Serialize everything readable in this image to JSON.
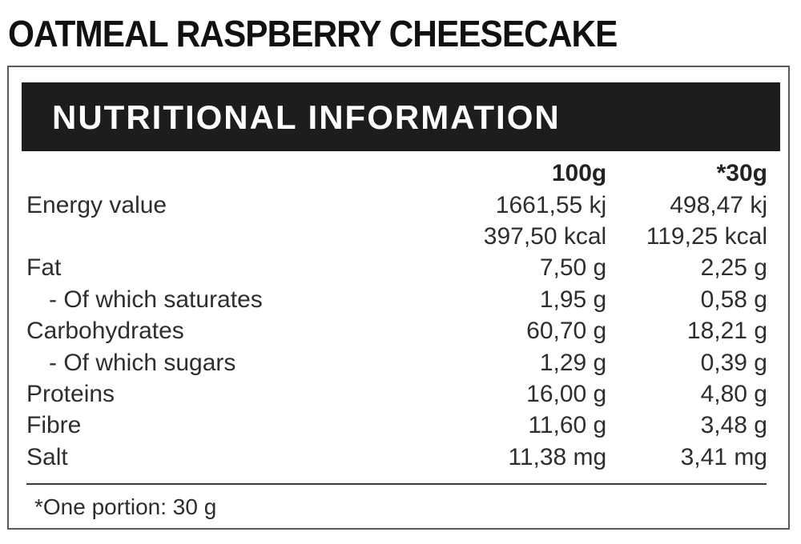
{
  "product": {
    "title": "OATMEAL RASPBERRY CHEESECAKE"
  },
  "panel": {
    "heading": "NUTRITIONAL INFORMATION",
    "columns": {
      "per_100g": "100g",
      "per_portion": "*30g"
    },
    "rows": [
      {
        "name": "Energy value",
        "per_100g": "1661,55 kj",
        "per_portion": "498,47 kj"
      },
      {
        "name": "",
        "per_100g": "397,50 kcal",
        "per_portion": "119,25 kcal"
      },
      {
        "name": "Fat",
        "per_100g": "7,50 g",
        "per_portion": "2,25 g"
      },
      {
        "name": "- Of which saturates",
        "per_100g": "1,95 g",
        "per_portion": "0,58 g"
      },
      {
        "name": "Carbohydrates",
        "per_100g": "60,70 g",
        "per_portion": "18,21 g"
      },
      {
        "name": "- Of which sugars",
        "per_100g": "1,29 g",
        "per_portion": "0,39 g"
      },
      {
        "name": "Proteins",
        "per_100g": "16,00 g",
        "per_portion": "4,80 g"
      },
      {
        "name": "Fibre",
        "per_100g": "11,60 g",
        "per_portion": "3,48 g"
      },
      {
        "name": "Salt",
        "per_100g": "11,38 mg",
        "per_portion": "3,41 mg"
      }
    ],
    "footnote": "*One portion: 30 g"
  },
  "colors": {
    "header_background": "#1d1d1d",
    "header_text": "#ffffff",
    "body_text": "#2e2e2e",
    "border": "#5a5a5a"
  }
}
